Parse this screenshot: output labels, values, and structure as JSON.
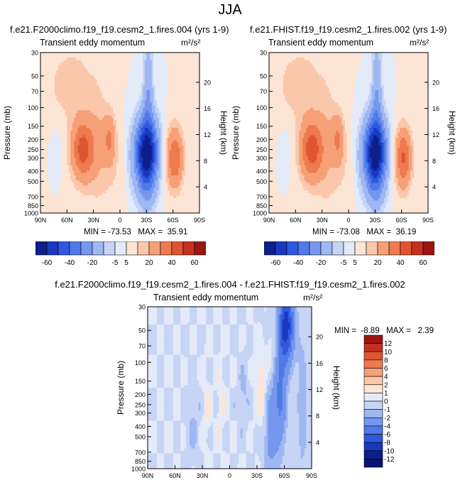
{
  "page": {
    "title": "JJA"
  },
  "chart_data": [
    {
      "type": "heatmap",
      "case": "f.e21.F2000climo.f19_f19.cesm2_1.fires.004 (yrs 1-9)",
      "field": "Transient eddy momentum",
      "units": "m²/s²",
      "ylabel": "Pressure (mb)",
      "ylabel_right": "Height (km)",
      "x_ticks": [
        "90N",
        "60N",
        "30N",
        "0",
        "30S",
        "60S",
        "90S"
      ],
      "y_ticks": [
        "30",
        "50",
        "70",
        "100",
        "150",
        "200",
        "250",
        "300",
        "400",
        "500",
        "700",
        "850",
        "1000"
      ],
      "y_right_ticks": [
        "20",
        "16",
        "12",
        "8",
        "4"
      ],
      "min": -73.53,
      "max": 35.91,
      "min_max_label": "MIN = -73.53   MAX =  35.91",
      "features": [
        {
          "lat": 42,
          "p": 250,
          "value": 34
        },
        {
          "lat": 12,
          "p": 200,
          "value": 18
        },
        {
          "lat": -30,
          "p": 270,
          "value": -73
        },
        {
          "lat": -62,
          "p": 300,
          "value": 30
        }
      ]
    },
    {
      "type": "heatmap",
      "case": "f.e21.FHIST.f19_f19.cesm2_1.fires.002 (yrs 1-9)",
      "field": "Transient eddy momentum",
      "units": "m²/s²",
      "ylabel": "Pressure (mb)",
      "ylabel_right": "Height (km)",
      "x_ticks": [
        "90N",
        "60N",
        "30N",
        "0",
        "30S",
        "60S",
        "90S"
      ],
      "y_ticks": [
        "30",
        "50",
        "70",
        "100",
        "150",
        "200",
        "250",
        "300",
        "400",
        "500",
        "700",
        "850",
        "1000"
      ],
      "y_right_ticks": [
        "20",
        "16",
        "12",
        "8",
        "4"
      ],
      "min": -73.08,
      "max": 36.19,
      "min_max_label": "MIN = -73.08   MAX =  36.19",
      "features": [
        {
          "lat": 42,
          "p": 250,
          "value": 35
        },
        {
          "lat": 12,
          "p": 200,
          "value": 18
        },
        {
          "lat": -30,
          "p": 270,
          "value": -73
        },
        {
          "lat": -62,
          "p": 300,
          "value": 31
        }
      ]
    },
    {
      "type": "heatmap",
      "case": "f.e21.F2000climo.f19_f19.cesm2_1.fires.004 - f.e21.FHIST.f19_f19.cesm2_1.fires.002",
      "field": "Transient eddy momentum",
      "units": "m²/s²",
      "ylabel": "Pressure (mb)",
      "ylabel_right": "Height (km)",
      "x_ticks": [
        "90N",
        "60N",
        "30N",
        "0",
        "30S",
        "60S",
        "90S"
      ],
      "y_ticks": [
        "30",
        "50",
        "70",
        "100",
        "150",
        "200",
        "250",
        "300",
        "400",
        "500",
        "700",
        "850",
        "1000"
      ],
      "y_right_ticks": [
        "20",
        "16",
        "12",
        "8",
        "4"
      ],
      "min": -8.89,
      "max": 2.39,
      "min_max_label": "MIN =  -8.89   MAX =   2.39",
      "features": [
        {
          "lat": -62,
          "p": 45,
          "value": -8.9
        },
        {
          "lat": -36,
          "p": 180,
          "value": 2.4
        },
        {
          "lat": -52,
          "p": 200,
          "value": -4
        }
      ]
    }
  ],
  "colorbars": {
    "full": {
      "labels": [
        "-60",
        "-40",
        "-20",
        "-5",
        "5",
        "20",
        "40",
        "60"
      ],
      "colors": [
        "#0c1f8a",
        "#1838c2",
        "#2f59dd",
        "#4f7ae8",
        "#7597ee",
        "#9fb7f2",
        "#c6d5f6",
        "#e3ebf9",
        "#fde5d6",
        "#fbc7aa",
        "#f6a078",
        "#ee7a4f",
        "#e05531",
        "#c6301f",
        "#9b1612"
      ]
    },
    "diff": {
      "labels": [
        "12",
        "10",
        "8",
        "6",
        "4",
        "2",
        "1",
        "0",
        "-1",
        "-2",
        "-4",
        "-6",
        "-8",
        "-10",
        "-12"
      ],
      "colors": [
        "#9b1612",
        "#c6301f",
        "#e05531",
        "#ee7a4f",
        "#f6a078",
        "#fbc7aa",
        "#fde5d6",
        "#e3ebf9",
        "#c6d5f6",
        "#9fb7f2",
        "#7597ee",
        "#4f7ae8",
        "#2f59dd",
        "#1838c2",
        "#0c1f8a",
        "#081470"
      ]
    }
  }
}
